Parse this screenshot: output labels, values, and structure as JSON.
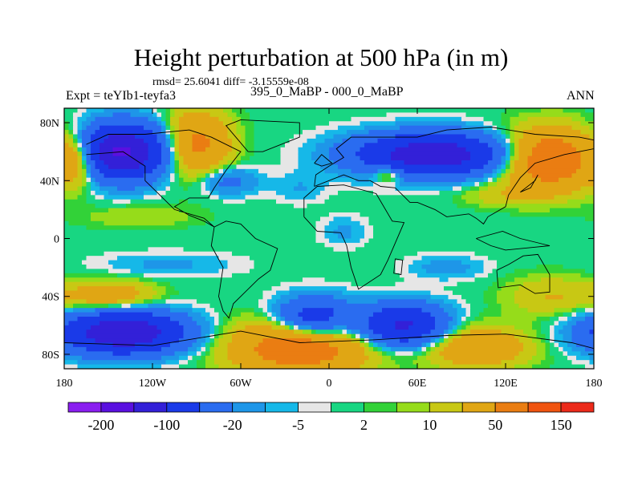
{
  "chart_data": {
    "type": "heatmap",
    "title": "Height perturbation at 500 hPa (in m)",
    "stats_text": "rmsd= 25.6041 diff= -3.15559e-08",
    "experiment_label": "Expt = teYIb1-teyfa3",
    "period_label": "395_0_MaBP - 000_0_MaBP",
    "season_label": "ANN",
    "x_axis": {
      "range": [
        -180,
        180
      ],
      "ticks": [
        -180,
        -120,
        -60,
        0,
        60,
        120,
        180
      ],
      "tick_labels": [
        "180",
        "120W",
        "60W",
        "0",
        "60E",
        "120E",
        "180"
      ]
    },
    "y_axis": {
      "range": [
        -90,
        90
      ],
      "ticks": [
        80,
        40,
        0,
        -40,
        -80
      ],
      "tick_labels": [
        "80N",
        "40N",
        "0",
        "40S",
        "80S"
      ]
    },
    "colorbar": {
      "colors": [
        "#8a1ef0",
        "#5a10e0",
        "#3320d8",
        "#1a3ae8",
        "#2a6cf0",
        "#1e96e8",
        "#16b8e8",
        "#e6e6e6",
        "#18d682",
        "#32d238",
        "#96dc1a",
        "#c8c814",
        "#e0a614",
        "#ea7d12",
        "#f05410",
        "#ec2a1a"
      ],
      "labeled_values": [
        -200,
        -100,
        -20,
        -5,
        2,
        10,
        50,
        150
      ],
      "labels": [
        "-200",
        "-100",
        "-20",
        "-5",
        "2",
        "10",
        "50",
        "150"
      ]
    },
    "anomaly_centers": [
      {
        "lon": -140,
        "lat": 60,
        "value": -160,
        "size": [
          28,
          18
        ]
      },
      {
        "lon": -170,
        "lat": 55,
        "value": 45,
        "size": [
          12,
          16
        ]
      },
      {
        "lon": -90,
        "lat": 65,
        "value": 60,
        "size": [
          22,
          22
        ]
      },
      {
        "lon": -70,
        "lat": 40,
        "value": -30,
        "size": [
          20,
          10
        ]
      },
      {
        "lon": -20,
        "lat": 35,
        "value": -10,
        "size": [
          18,
          10
        ]
      },
      {
        "lon": 40,
        "lat": 45,
        "value": 40,
        "size": [
          10,
          6
        ]
      },
      {
        "lon": 70,
        "lat": 58,
        "value": -140,
        "size": [
          50,
          14
        ]
      },
      {
        "lon": 150,
        "lat": 55,
        "value": 90,
        "size": [
          32,
          20
        ]
      },
      {
        "lon": -130,
        "lat": 15,
        "value": 10,
        "size": [
          40,
          8
        ]
      },
      {
        "lon": 120,
        "lat": 30,
        "value": 15,
        "size": [
          30,
          8
        ]
      },
      {
        "lon": 150,
        "lat": -40,
        "value": 20,
        "size": [
          30,
          14
        ]
      },
      {
        "lon": 80,
        "lat": -20,
        "value": -15,
        "size": [
          25,
          8
        ]
      },
      {
        "lon": -110,
        "lat": -18,
        "value": -12,
        "size": [
          45,
          8
        ]
      },
      {
        "lon": -150,
        "lat": -40,
        "value": 40,
        "size": [
          30,
          10
        ]
      },
      {
        "lon": -140,
        "lat": -65,
        "value": -150,
        "size": [
          40,
          14
        ]
      },
      {
        "lon": -10,
        "lat": -55,
        "value": -80,
        "size": [
          25,
          14
        ]
      },
      {
        "lon": 50,
        "lat": -60,
        "value": -110,
        "size": [
          28,
          14
        ]
      },
      {
        "lon": -20,
        "lat": -75,
        "value": 80,
        "size": [
          45,
          18
        ]
      },
      {
        "lon": 100,
        "lat": -75,
        "value": 45,
        "size": [
          35,
          14
        ]
      },
      {
        "lon": 10,
        "lat": 5,
        "value": -12,
        "size": [
          15,
          10
        ]
      }
    ]
  }
}
